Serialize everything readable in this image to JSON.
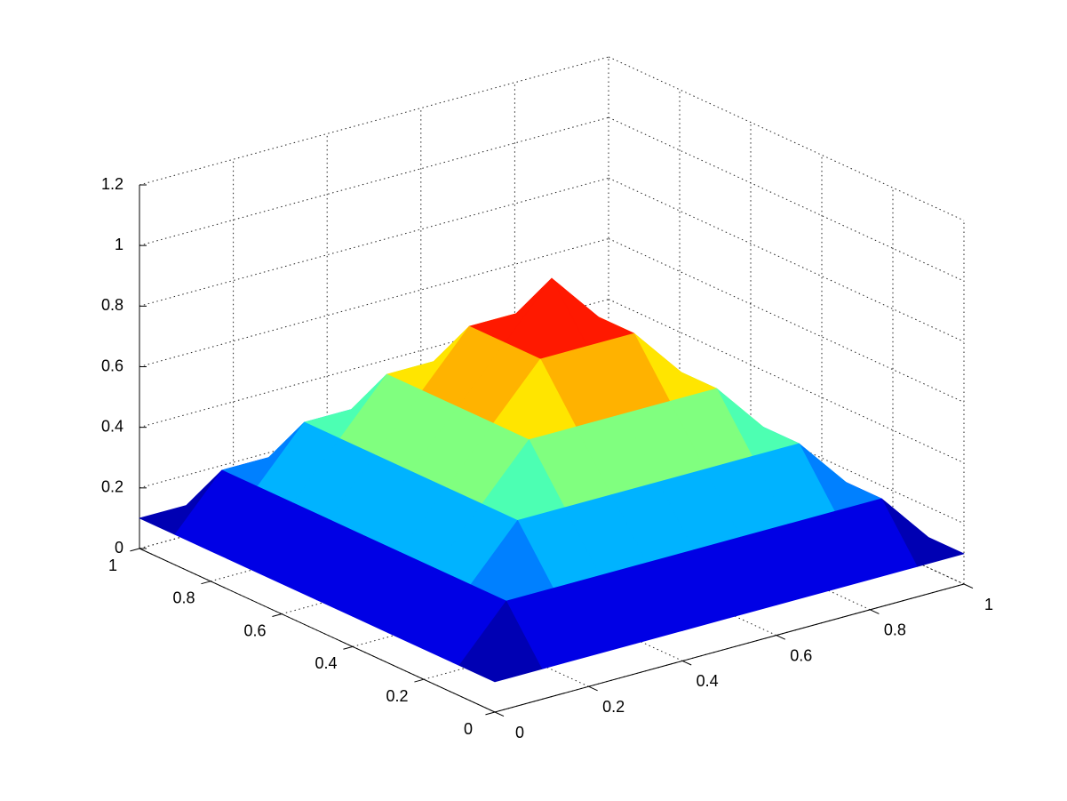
{
  "chart_data": {
    "type": "surface",
    "colormap": "jet",
    "grid": true,
    "x": [
      0,
      0.1,
      0.2,
      0.3,
      0.4,
      0.5,
      0.6,
      0.7,
      0.8,
      0.9,
      1
    ],
    "y": [
      0,
      0.1,
      0.2,
      0.3,
      0.4,
      0.5,
      0.6,
      0.7,
      0.8,
      0.9,
      1
    ],
    "z": [
      [
        0.1,
        0.1,
        0.1,
        0.1,
        0.1,
        0.1,
        0.1,
        0.1,
        0.1,
        0.1,
        0.1
      ],
      [
        0.1,
        0.27,
        0.27,
        0.27,
        0.27,
        0.27,
        0.27,
        0.27,
        0.27,
        0.27,
        0.1
      ],
      [
        0.1,
        0.27,
        0.44,
        0.44,
        0.44,
        0.44,
        0.44,
        0.44,
        0.44,
        0.27,
        0.1
      ],
      [
        0.1,
        0.27,
        0.44,
        0.61,
        0.61,
        0.61,
        0.61,
        0.61,
        0.44,
        0.27,
        0.1
      ],
      [
        0.1,
        0.27,
        0.44,
        0.61,
        0.78,
        0.78,
        0.78,
        0.61,
        0.44,
        0.27,
        0.1
      ],
      [
        0.1,
        0.27,
        0.44,
        0.61,
        0.78,
        0.95,
        0.78,
        0.61,
        0.44,
        0.27,
        0.1
      ],
      [
        0.1,
        0.27,
        0.44,
        0.61,
        0.78,
        0.78,
        0.78,
        0.61,
        0.44,
        0.27,
        0.1
      ],
      [
        0.1,
        0.27,
        0.44,
        0.61,
        0.61,
        0.61,
        0.61,
        0.61,
        0.44,
        0.27,
        0.1
      ],
      [
        0.1,
        0.27,
        0.44,
        0.44,
        0.44,
        0.44,
        0.44,
        0.44,
        0.44,
        0.27,
        0.1
      ],
      [
        0.1,
        0.27,
        0.27,
        0.27,
        0.27,
        0.27,
        0.27,
        0.27,
        0.27,
        0.27,
        0.1
      ],
      [
        0.1,
        0.1,
        0.1,
        0.1,
        0.1,
        0.1,
        0.1,
        0.1,
        0.1,
        0.1,
        0.1
      ]
    ],
    "xlim": [
      0,
      1
    ],
    "ylim": [
      0,
      1
    ],
    "zlim": [
      0,
      1.2
    ],
    "xticks": [
      0,
      0.2,
      0.4,
      0.6,
      0.8,
      1
    ],
    "yticks": [
      0,
      0.2,
      0.4,
      0.6,
      0.8,
      1
    ],
    "zticks": [
      0,
      0.2,
      0.4,
      0.6,
      0.8,
      1,
      1.2
    ]
  }
}
